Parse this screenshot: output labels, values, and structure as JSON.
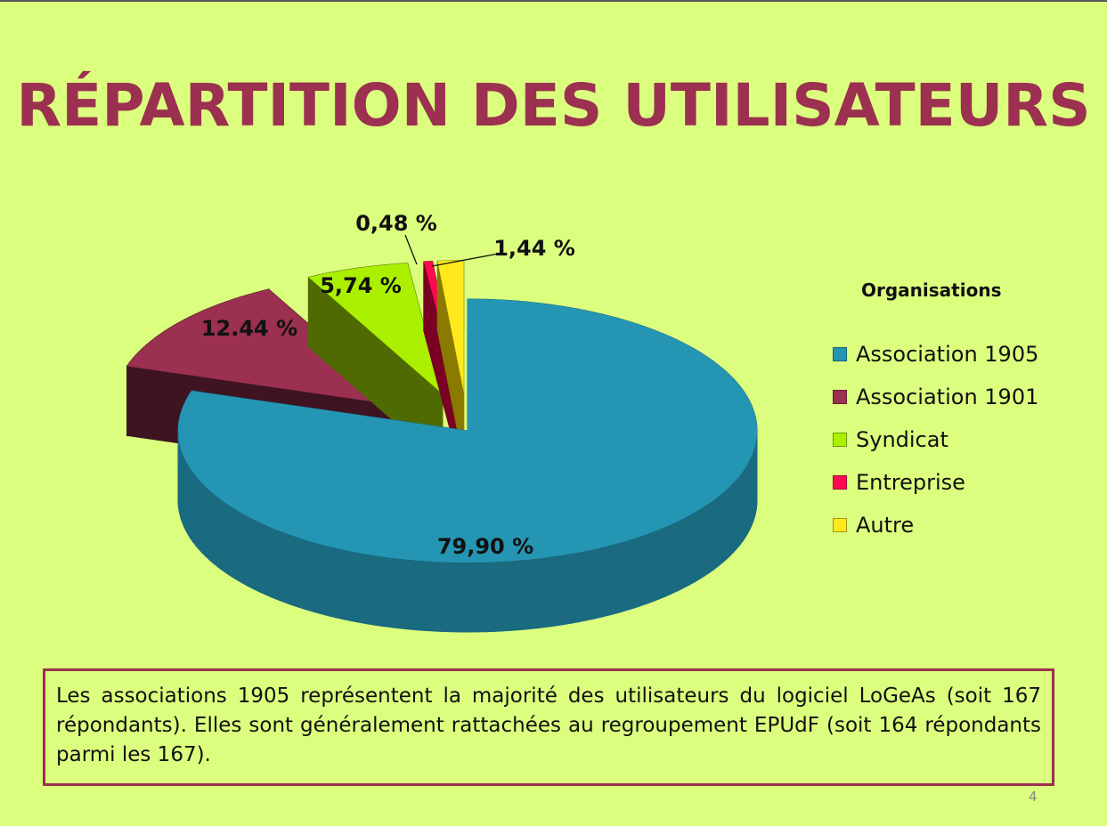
{
  "slide": {
    "title": "RÉPARTITION DES UTILISATEURS",
    "note": "Les associations 1905 représentent la majorité des utilisateurs du logiciel LoGeAs (soit 167 répondants). Elles sont généralement rattachées au regroupement EPUdF (soit 164 répondants parmi les 167).",
    "page_number": "4"
  },
  "chart_data": {
    "type": "pie",
    "style": "3d-exploded",
    "legend_title": "Organisations",
    "legend_placement": "right",
    "categories": [
      "Association 1905",
      "Association 1901",
      "Syndicat",
      "Entreprise",
      "Autre"
    ],
    "values": [
      79.9,
      12.44,
      5.74,
      0.48,
      1.44
    ],
    "data_labels": [
      "79,90 %",
      "12.44 %",
      "5,74 %",
      "0,48 %",
      "1,44 %"
    ],
    "colors": [
      "#2496b4",
      "#9b3050",
      "#aaf000",
      "#ff0a50",
      "#ffe81c"
    ],
    "side_colors": [
      "#1a6a80",
      "#3f1422",
      "#4e6a00",
      "#7a0024",
      "#8a7a00"
    ]
  }
}
